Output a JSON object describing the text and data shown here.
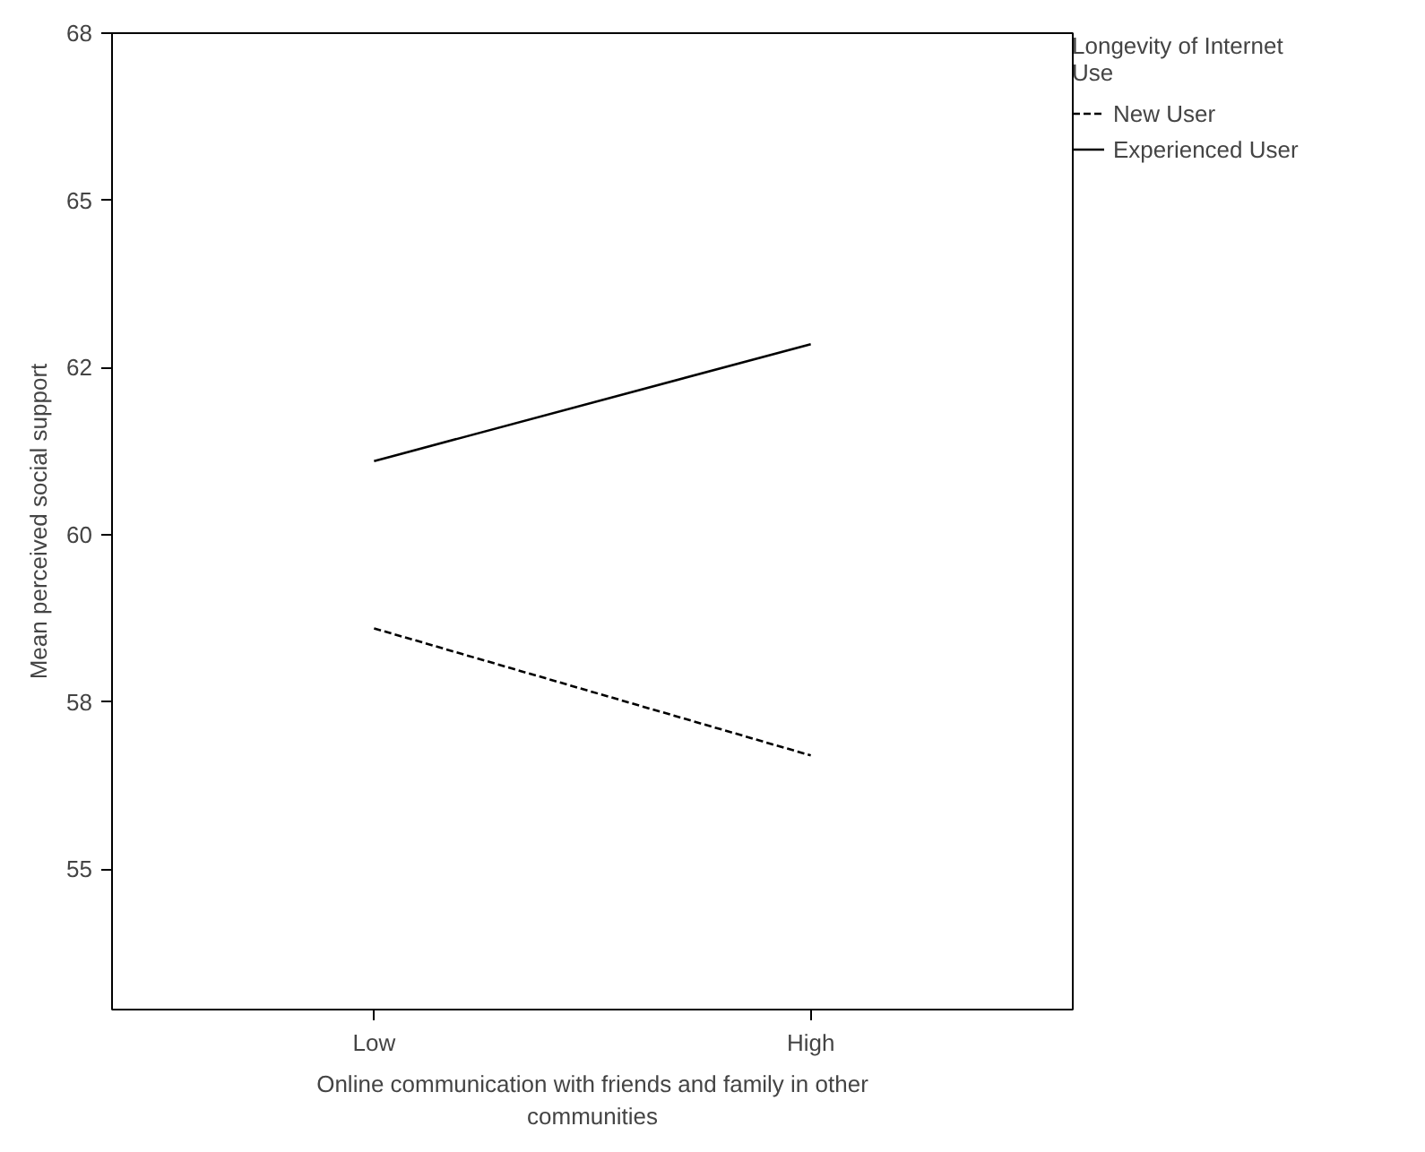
{
  "chart_data": {
    "type": "line",
    "xlabel": "Online communication with friends and family in other communities",
    "ylabel": "Mean perceived social support",
    "legend_title": "Longevity of Internet Use",
    "categories": [
      "Low",
      "High"
    ],
    "series": [
      {
        "name": "New User",
        "color": "#000000",
        "line_style": "dashed",
        "values": [
          58.6,
          56.7
        ]
      },
      {
        "name": "Experienced User",
        "color": "#000000",
        "line_style": "solid",
        "values": [
          61.1,
          62.85
        ]
      }
    ],
    "ylim": [
      52.9,
      67.5
    ],
    "yticks": [
      {
        "value": 55,
        "label": "55"
      },
      {
        "value": 57.5,
        "label": "58"
      },
      {
        "value": 60,
        "label": "60"
      },
      {
        "value": 62.5,
        "label": "62"
      },
      {
        "value": 65,
        "label": "65"
      },
      {
        "value": 67.5,
        "label": "68"
      }
    ],
    "grid": false,
    "legend": "right",
    "marker": "none"
  }
}
